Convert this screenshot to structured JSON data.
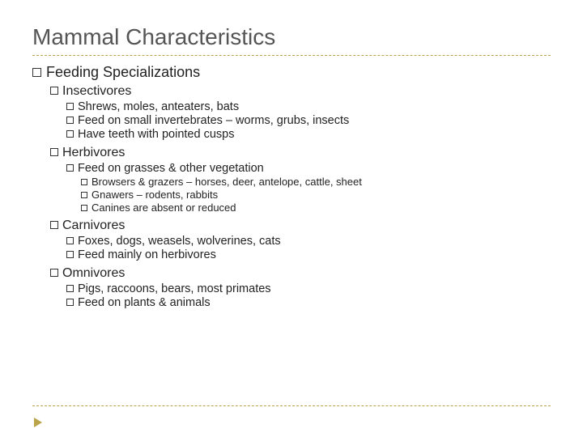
{
  "colors": {
    "accent": "#bba34a",
    "text": "#333333",
    "title": "#555555",
    "background": "#ffffff"
  },
  "typography": {
    "title_fontsize": 28,
    "lvl1_fontsize": 18,
    "lvl2_fontsize": 16,
    "lvl3_fontsize": 14.5,
    "lvl4_fontsize": 13,
    "font_family": "Arial"
  },
  "slide": {
    "title": "Mammal Characteristics",
    "main": {
      "label": "Feeding Specializations",
      "sections": [
        {
          "label": "Insectivores",
          "items": [
            "Shrews, moles, anteaters, bats",
            "Feed on small invertebrates – worms, grubs, insects",
            "Have teeth with pointed cusps"
          ]
        },
        {
          "label": "Herbivores",
          "items": [
            "Feed on grasses & other vegetation"
          ],
          "subitems": [
            "Browsers & grazers – horses, deer, antelope, cattle, sheet",
            "Gnawers – rodents, rabbits",
            "Canines are absent or reduced"
          ]
        },
        {
          "label": "Carnivores",
          "items": [
            "Foxes, dogs, weasels, wolverines, cats",
            "Feed mainly on herbivores"
          ]
        },
        {
          "label": "Omnivores",
          "items": [
            "Pigs, raccoons, bears, most primates",
            "Feed on plants & animals"
          ]
        }
      ]
    }
  }
}
